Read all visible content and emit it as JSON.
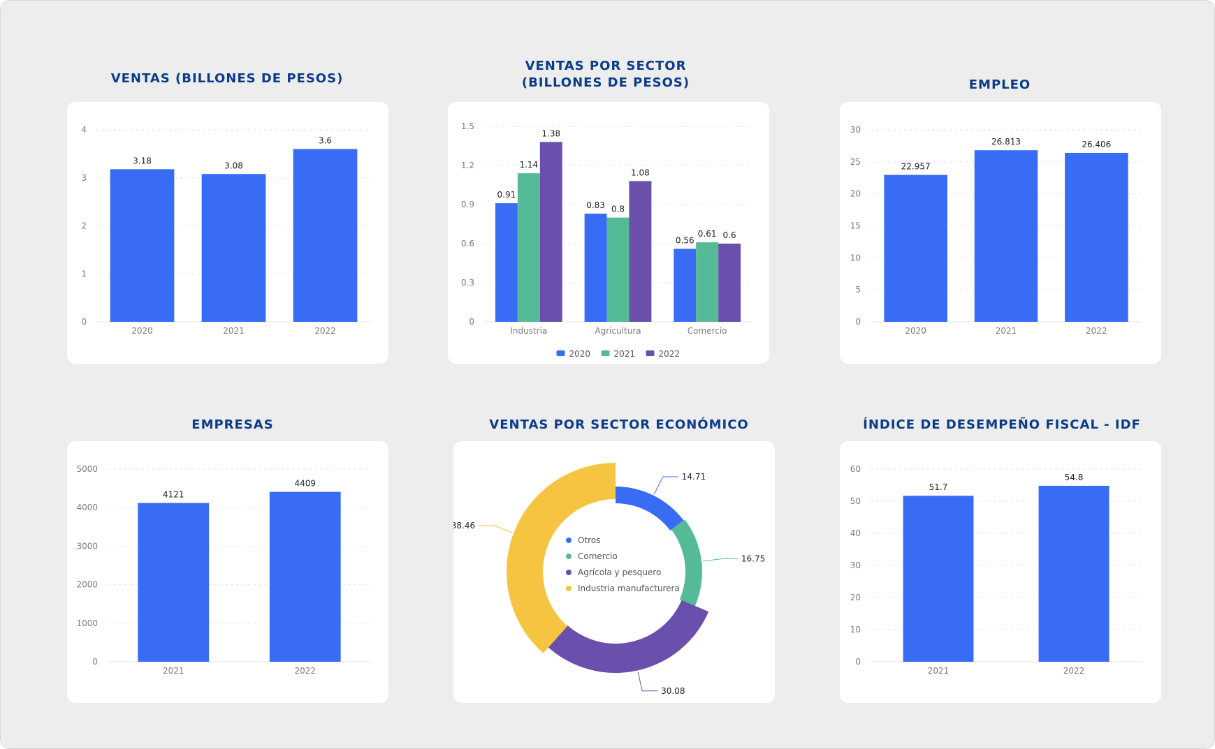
{
  "colors": {
    "primary": "#386cf5",
    "green": "#55bb96",
    "purple": "#6a4fac",
    "yellow": "#f6c440",
    "title": "#0b3c8a"
  },
  "chart_data": [
    {
      "id": "ventas",
      "type": "bar",
      "title": "VENTAS (BILLONES DE PESOS)",
      "categories": [
        "2020",
        "2021",
        "2022"
      ],
      "values": [
        3.18,
        3.08,
        3.6
      ],
      "data_labels": [
        "3.18",
        "3.08",
        "3.6"
      ],
      "ylim": [
        0,
        4
      ],
      "yticks": [
        0,
        1,
        2,
        3,
        4
      ],
      "grid": true
    },
    {
      "id": "ventas-sector",
      "type": "bar",
      "title": "VENTAS POR SECTOR\n(BILLONES DE PESOS)",
      "categories": [
        "Industria",
        "Agricultura",
        "Comercio"
      ],
      "series": [
        {
          "name": "2020",
          "color": "#386cf5",
          "values": [
            0.91,
            0.83,
            0.56
          ],
          "data_labels": [
            "0.91",
            "0.83",
            "0.56"
          ]
        },
        {
          "name": "2021",
          "color": "#55bb96",
          "values": [
            1.14,
            0.8,
            0.61
          ],
          "data_labels": [
            "1.14",
            "0.8",
            "0.61"
          ]
        },
        {
          "name": "2022",
          "color": "#6a4fac",
          "values": [
            1.38,
            1.08,
            0.6
          ],
          "data_labels": [
            "1.38",
            "1.08",
            "0.6"
          ]
        }
      ],
      "ylim": [
        0,
        1.5
      ],
      "yticks": [
        0,
        0.3,
        0.6,
        0.9,
        1.2,
        1.5
      ],
      "ytick_labels": [
        "0",
        "0.3",
        "0.6",
        "0.9",
        "1.2",
        "1.5"
      ],
      "legend": "bottom-center",
      "grid": true
    },
    {
      "id": "empleo",
      "type": "bar",
      "title": "EMPLEO",
      "categories": [
        "2020",
        "2021",
        "2022"
      ],
      "values": [
        22.957,
        26.813,
        26.406
      ],
      "data_labels": [
        "22.957",
        "26.813",
        "26.406"
      ],
      "ylim": [
        0,
        30
      ],
      "yticks": [
        0,
        5,
        10,
        15,
        20,
        25,
        30
      ],
      "grid": true
    },
    {
      "id": "empresas",
      "type": "bar",
      "title": "EMPRESAS",
      "categories": [
        "2021",
        "2022"
      ],
      "values": [
        4121,
        4409
      ],
      "data_labels": [
        "4121",
        "4409"
      ],
      "ylim": [
        0,
        5000
      ],
      "yticks": [
        0,
        1000,
        2000,
        3000,
        4000,
        5000
      ],
      "grid": true
    },
    {
      "id": "sector-economico",
      "type": "pie",
      "title": "VENTAS POR SECTOR ECONÓMICO",
      "slices": [
        {
          "name": "Otros",
          "value": 14.71,
          "label": "14.71",
          "color": "#386cf5"
        },
        {
          "name": "Comercio",
          "value": 16.75,
          "label": "16.75",
          "color": "#55bb96"
        },
        {
          "name": "Agrícola y pesquero",
          "value": 30.08,
          "label": "30.08",
          "color": "#6a4fac"
        },
        {
          "name": "Industria manufacturera",
          "value": 38.46,
          "label": "38.46",
          "color": "#f6c440"
        }
      ],
      "legend": "center"
    },
    {
      "id": "idf",
      "type": "bar",
      "title": "ÍNDICE DE DESEMPEÑO FISCAL - IDF",
      "categories": [
        "2021",
        "2022"
      ],
      "values": [
        51.7,
        54.8
      ],
      "data_labels": [
        "51.7",
        "54.8"
      ],
      "ylim": [
        0,
        60
      ],
      "yticks": [
        0,
        10,
        20,
        30,
        40,
        50,
        60
      ],
      "grid": true
    }
  ]
}
